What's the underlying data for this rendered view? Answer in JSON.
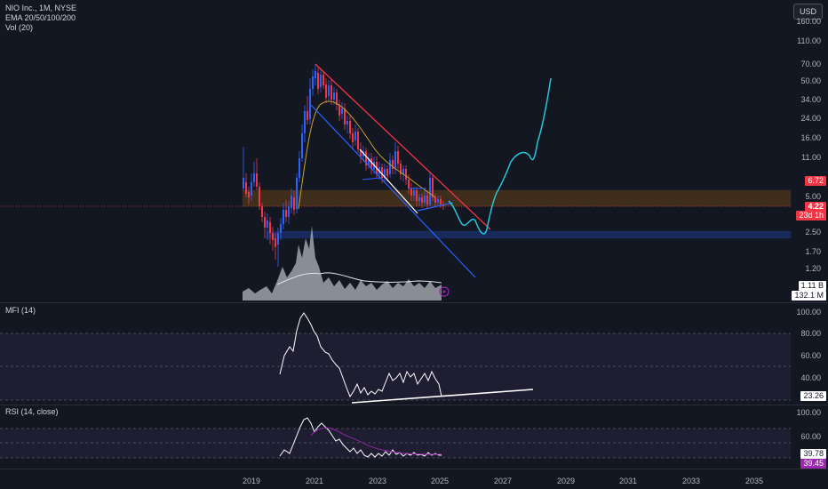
{
  "legend": {
    "symbol": "NIO Inc., 1M, NYSE",
    "ema": "EMA 20/50/100/200",
    "vol": "Vol (20)"
  },
  "mfi": {
    "title": "MFI (14)"
  },
  "rsi": {
    "title": "RSI (14, close)"
  },
  "currency_button": "USD",
  "price_axis": [
    "160.00",
    "110.00",
    "70.00",
    "50.00",
    "34.00",
    "24.00",
    "16.00",
    "11.00",
    "5.00",
    "2.50",
    "1.70",
    "1.20"
  ],
  "mfi_axis": [
    "100.00",
    "80.00",
    "60.00",
    "40.00"
  ],
  "rsi_axis": [
    "100.00",
    "60.00"
  ],
  "time_axis": [
    "2019",
    "2021",
    "2023",
    "2025",
    "2027",
    "2029",
    "2031",
    "2033",
    "2035"
  ],
  "tags": {
    "price_high": "6.72",
    "price_last": "4.22",
    "countdown": "23d 1h",
    "vol_a": "1.11 B",
    "vol_b": "132.1 M",
    "mfi_value": "23.26",
    "rsi_a": "39.78",
    "rsi_b": "39.45"
  },
  "colors": {
    "background": "#131722",
    "up": "#2962ff",
    "down": "#f23645",
    "projection": "#26c6da",
    "support_zone": "#ff9800",
    "lower_zone": "#2962ff"
  }
}
